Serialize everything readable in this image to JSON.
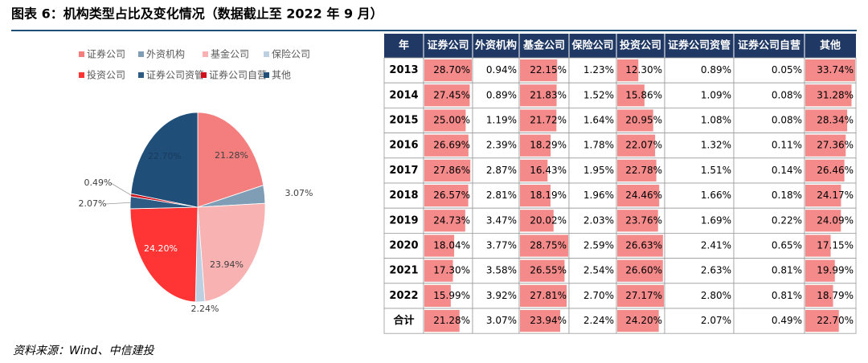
{
  "title": "图表 6：机构类型占比及变化情况（数据截止至 2022 年 9 月）",
  "source": "资料来源：Wind、中信建投",
  "chart_data": {
    "type": "pie",
    "categories": [
      "证券公司",
      "外资机构",
      "基金公司",
      "保险公司",
      "投资公司",
      "证券公司资管",
      "证券公司自营",
      "其他"
    ],
    "values": [
      21.28,
      3.07,
      23.94,
      2.24,
      24.2,
      2.07,
      0.49,
      22.7
    ],
    "value_labels": [
      "21.28%",
      "3.07%",
      "23.94%",
      "2.24%",
      "24.20%",
      "2.07%",
      "0.49%",
      "22.70%"
    ],
    "colors": [
      "#f47e7e",
      "#7f9db5",
      "#f9b2b2",
      "#bcd0e2",
      "#ff3535",
      "#2e5b84",
      "#d0101a",
      "#1f4e79"
    ]
  },
  "table": {
    "header": [
      "年",
      "证券公司",
      "外资机构",
      "基金公司",
      "保险公司",
      "投资公司",
      "证券公司资管",
      "证券公司自营",
      "其他"
    ],
    "data_bar_columns": [
      1,
      3,
      5,
      8
    ],
    "data_bar_color": "#f48a8a",
    "rows": [
      [
        "2013",
        {
          "value": 28.7,
          "label": "28.70%"
        },
        {
          "value": 0.94,
          "label": "0.94%"
        },
        {
          "value": 22.15,
          "label": "22.15%"
        },
        {
          "value": 1.23,
          "label": "1.23%"
        },
        {
          "value": 12.3,
          "label": "12.30%"
        },
        {
          "value": 0.89,
          "label": "0.89%"
        },
        {
          "value": 0.05,
          "label": "0.05%"
        },
        {
          "value": 33.74,
          "label": "33.74%"
        }
      ],
      [
        "2014",
        {
          "value": 27.45,
          "label": "27.45%"
        },
        {
          "value": 0.89,
          "label": "0.89%"
        },
        {
          "value": 21.83,
          "label": "21.83%"
        },
        {
          "value": 1.52,
          "label": "1.52%"
        },
        {
          "value": 15.86,
          "label": "15.86%"
        },
        {
          "value": 1.09,
          "label": "1.09%"
        },
        {
          "value": 0.08,
          "label": "0.08%"
        },
        {
          "value": 31.28,
          "label": "31.28%"
        }
      ],
      [
        "2015",
        {
          "value": 25.0,
          "label": "25.00%"
        },
        {
          "value": 1.19,
          "label": "1.19%"
        },
        {
          "value": 21.72,
          "label": "21.72%"
        },
        {
          "value": 1.64,
          "label": "1.64%"
        },
        {
          "value": 20.95,
          "label": "20.95%"
        },
        {
          "value": 1.08,
          "label": "1.08%"
        },
        {
          "value": 0.08,
          "label": "0.08%"
        },
        {
          "value": 28.34,
          "label": "28.34%"
        }
      ],
      [
        "2016",
        {
          "value": 26.69,
          "label": "26.69%"
        },
        {
          "value": 2.39,
          "label": "2.39%"
        },
        {
          "value": 18.29,
          "label": "18.29%"
        },
        {
          "value": 1.78,
          "label": "1.78%"
        },
        {
          "value": 22.07,
          "label": "22.07%"
        },
        {
          "value": 1.32,
          "label": "1.32%"
        },
        {
          "value": 0.11,
          "label": "0.11%"
        },
        {
          "value": 27.36,
          "label": "27.36%"
        }
      ],
      [
        "2017",
        {
          "value": 27.86,
          "label": "27.86%"
        },
        {
          "value": 2.87,
          "label": "2.87%"
        },
        {
          "value": 16.43,
          "label": "16.43%"
        },
        {
          "value": 1.95,
          "label": "1.95%"
        },
        {
          "value": 22.78,
          "label": "22.78%"
        },
        {
          "value": 1.51,
          "label": "1.51%"
        },
        {
          "value": 0.14,
          "label": "0.14%"
        },
        {
          "value": 26.46,
          "label": "26.46%"
        }
      ],
      [
        "2018",
        {
          "value": 26.57,
          "label": "26.57%"
        },
        {
          "value": 2.81,
          "label": "2.81%"
        },
        {
          "value": 18.19,
          "label": "18.19%"
        },
        {
          "value": 1.96,
          "label": "1.96%"
        },
        {
          "value": 24.46,
          "label": "24.46%"
        },
        {
          "value": 1.66,
          "label": "1.66%"
        },
        {
          "value": 0.18,
          "label": "0.18%"
        },
        {
          "value": 24.17,
          "label": "24.17%"
        }
      ],
      [
        "2019",
        {
          "value": 24.73,
          "label": "24.73%"
        },
        {
          "value": 3.47,
          "label": "3.47%"
        },
        {
          "value": 20.02,
          "label": "20.02%"
        },
        {
          "value": 2.03,
          "label": "2.03%"
        },
        {
          "value": 23.76,
          "label": "23.76%"
        },
        {
          "value": 1.69,
          "label": "1.69%"
        },
        {
          "value": 0.22,
          "label": "0.22%"
        },
        {
          "value": 24.09,
          "label": "24.09%"
        }
      ],
      [
        "2020",
        {
          "value": 18.04,
          "label": "18.04%"
        },
        {
          "value": 3.77,
          "label": "3.77%"
        },
        {
          "value": 28.75,
          "label": "28.75%"
        },
        {
          "value": 2.59,
          "label": "2.59%"
        },
        {
          "value": 26.63,
          "label": "26.63%"
        },
        {
          "value": 2.41,
          "label": "2.41%"
        },
        {
          "value": 0.65,
          "label": "0.65%"
        },
        {
          "value": 17.15,
          "label": "17.15%"
        }
      ],
      [
        "2021",
        {
          "value": 17.3,
          "label": "17.30%"
        },
        {
          "value": 3.58,
          "label": "3.58%"
        },
        {
          "value": 26.55,
          "label": "26.55%"
        },
        {
          "value": 2.54,
          "label": "2.54%"
        },
        {
          "value": 26.6,
          "label": "26.60%"
        },
        {
          "value": 2.63,
          "label": "2.63%"
        },
        {
          "value": 0.81,
          "label": "0.81%"
        },
        {
          "value": 19.99,
          "label": "19.99%"
        }
      ],
      [
        "2022",
        {
          "value": 15.99,
          "label": "15.99%"
        },
        {
          "value": 3.92,
          "label": "3.92%"
        },
        {
          "value": 27.81,
          "label": "27.81%"
        },
        {
          "value": 2.7,
          "label": "2.70%"
        },
        {
          "value": 27.17,
          "label": "27.17%"
        },
        {
          "value": 2.8,
          "label": "2.80%"
        },
        {
          "value": 0.81,
          "label": "0.81%"
        },
        {
          "value": 18.79,
          "label": "18.79%"
        }
      ],
      [
        "合计",
        {
          "value": 21.28,
          "label": "21.28%"
        },
        {
          "value": 3.07,
          "label": "3.07%"
        },
        {
          "value": 23.94,
          "label": "23.94%"
        },
        {
          "value": 2.24,
          "label": "2.24%"
        },
        {
          "value": 24.2,
          "label": "24.20%"
        },
        {
          "value": 2.07,
          "label": "2.07%"
        },
        {
          "value": 0.49,
          "label": "0.49%"
        },
        {
          "value": 22.7,
          "label": "22.70%"
        }
      ]
    ]
  }
}
